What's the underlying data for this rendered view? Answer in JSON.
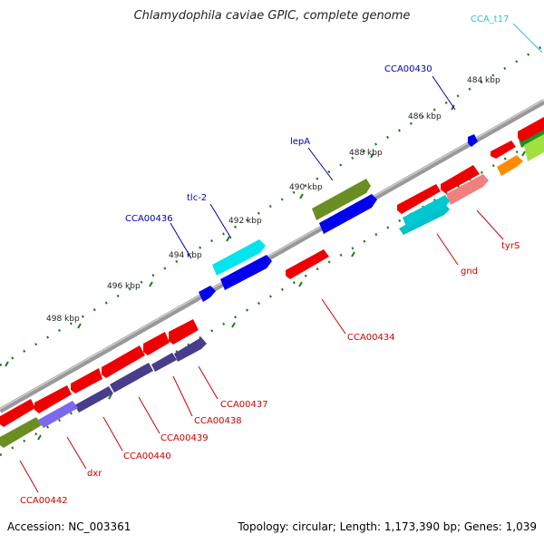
{
  "title": "Chlamydophila caviae GPIC, complete genome",
  "footer": {
    "accession": "Accession: NC_003361",
    "topology": "Topology: circular; Length: 1,173,390 bp; Genes: 1,039"
  },
  "scale": {
    "ticks": [
      "484 kbp",
      "486 kbp",
      "488 kbp",
      "490 kbp",
      "492 kbp",
      "494 kbp",
      "496 kbp",
      "498 kbp"
    ]
  },
  "colors": {
    "forward_cds": "#0000ee",
    "reverse_cds": "#ee0000",
    "backbone": "#888888",
    "tick": "#1a7a1a",
    "label_forward": "#0000aa",
    "label_reverse": "#cc0000",
    "label_trna": "#33bbdd"
  },
  "labels": {
    "forward": [
      "CCA_t17",
      "CCA00430",
      "lepA",
      "tlc-2",
      "CCA00436"
    ],
    "reverse": [
      "tyrS",
      "gnd",
      "CCA00434",
      "CCA00437",
      "CCA00438",
      "CCA00439",
      "CCA00440",
      "dxr",
      "CCA00442"
    ]
  }
}
